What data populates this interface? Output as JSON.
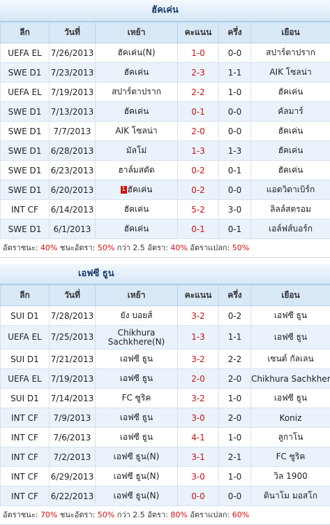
{
  "columns": [
    "ลีก",
    "วันที่",
    "เหย้า",
    "คะแนน",
    "ครึ่ง",
    "เยือน"
  ],
  "team1": {
    "title": "ฮัคเค่น",
    "rows": [
      {
        "league": "UEFA EL",
        "date": "7/26/2013",
        "home": "ฮัคเค่น(N)",
        "score": "1-0",
        "half": "0-0",
        "away": "สปาร์ตาปราก",
        "hi": "home"
      },
      {
        "league": "SWE D1",
        "date": "7/23/2013",
        "home": "ฮัคเค่น",
        "score": "2-3",
        "half": "1-1",
        "away": "AIK โซลน่า",
        "hi": "home"
      },
      {
        "league": "UEFA EL",
        "date": "7/19/2013",
        "home": "สปาร์ตาปราก",
        "score": "2-2",
        "half": "1-0",
        "away": "ฮัคเค่น",
        "hi": "away"
      },
      {
        "league": "SWE D1",
        "date": "7/13/2013",
        "home": "ฮัคเค่น",
        "score": "0-1",
        "half": "0-0",
        "away": "คัลมาร์",
        "hi": "home"
      },
      {
        "league": "SWE D1",
        "date": "7/7/2013",
        "home": "AIK โซลน่า",
        "score": "2-0",
        "half": "0-0",
        "away": "ฮัคเค่น",
        "hi": "away"
      },
      {
        "league": "SWE D1",
        "date": "6/28/2013",
        "home": "มัลโม่",
        "score": "1-3",
        "half": "1-3",
        "away": "ฮัคเค่น",
        "hi": "away"
      },
      {
        "league": "SWE D1",
        "date": "6/23/2013",
        "home": "ฮาล์มสตัด",
        "score": "0-2",
        "half": "0-1",
        "away": "ฮัคเค่น",
        "hi": "away"
      },
      {
        "league": "SWE D1",
        "date": "6/20/2013",
        "home": "ฮัคเค่น",
        "home_flag": "1",
        "score": "0-2",
        "half": "0-0",
        "away": "แอตวิดาเบิร์ก",
        "hi": "home"
      },
      {
        "league": "INT CF",
        "date": "6/14/2013",
        "home": "ฮัคเค่น",
        "score": "5-2",
        "half": "3-0",
        "away": "ลิลล์สตรอม",
        "hi": "home"
      },
      {
        "league": "SWE D1",
        "date": "6/1/2013",
        "home": "ฮัคเค่น",
        "score": "0-1",
        "half": "0-1",
        "away": "เอล์ฟส์บอร์ก",
        "hi": "home"
      }
    ],
    "stats": {
      "l1": "อัตราชนะ:",
      "v1": "40%",
      "l2": "ชนะอัตรา:",
      "v2": "50%",
      "l3": "กว่า 2.5 อัตรา:",
      "v3": "40%",
      "l4": "อัตราแปลก:",
      "v4": "50%"
    }
  },
  "team2": {
    "title": "เอฟซี ธูน",
    "rows": [
      {
        "league": "SUI D1",
        "date": "7/28/2013",
        "home": "ยัง บอยส์",
        "score": "3-2",
        "half": "0-2",
        "away": "เอฟซี ธูน",
        "hi": "away"
      },
      {
        "league": "UEFA EL",
        "date": "7/25/2013",
        "home": "Chikhura Sachkhere(N)",
        "score": "1-3",
        "half": "1-1",
        "away": "เอฟซี ธูน",
        "hi": "away",
        "tall": true
      },
      {
        "league": "SUI D1",
        "date": "7/21/2013",
        "home": "เอฟซี ธูน",
        "score": "3-2",
        "half": "2-2",
        "away": "เซนต์ กัลเลน",
        "hi": "home"
      },
      {
        "league": "UEFA EL",
        "date": "7/19/2013",
        "home": "เอฟซี ธูน",
        "score": "2-0",
        "half": "2-0",
        "away": "Chikhura Sachkhere",
        "hi": "home"
      },
      {
        "league": "SUI D1",
        "date": "7/14/2013",
        "home": "FC ซูริค",
        "score": "3-2",
        "half": "1-0",
        "away": "เอฟซี ธูน",
        "hi": "away"
      },
      {
        "league": "INT CF",
        "date": "7/9/2013",
        "home": "เอฟซี ธูน",
        "score": "3-0",
        "half": "2-0",
        "away": "Koniz",
        "hi": "home"
      },
      {
        "league": "INT CF",
        "date": "7/6/2013",
        "home": "เอฟซี ธูน",
        "score": "4-1",
        "half": "1-0",
        "away": "ลูกาโน",
        "hi": "home"
      },
      {
        "league": "INT CF",
        "date": "7/2/2013",
        "home": "เอฟซี ธูน(N)",
        "score": "3-1",
        "half": "2-1",
        "away": "FC ซูริค",
        "hi": "home"
      },
      {
        "league": "INT CF",
        "date": "6/29/2013",
        "home": "เอฟซี ธูน(N)",
        "score": "3-0",
        "half": "1-0",
        "away": "วิล 1900",
        "hi": "home"
      },
      {
        "league": "INT CF",
        "date": "6/22/2013",
        "home": "เอฟซี ธูน(N)",
        "score": "0-0",
        "half": "0-0",
        "away": "ดินาโม มอสโก",
        "hi": "home"
      }
    ],
    "stats": {
      "l1": "อัตราชนะ:",
      "v1": "70%",
      "l2": "ชนะอัตรา:",
      "v2": "50%",
      "l3": "กว่า 2.5 อัตรา:",
      "v3": "80%",
      "l4": "อัตราแปลก:",
      "v4": "60%"
    }
  }
}
